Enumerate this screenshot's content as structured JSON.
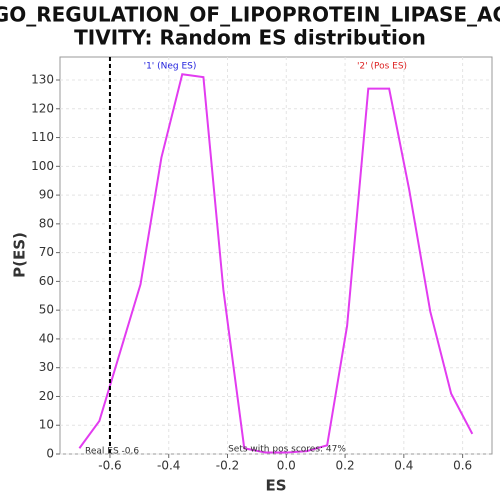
{
  "chart_data": {
    "type": "line",
    "title": [
      "GO_REGULATION_OF_LIPOPROTEIN_LIPASE_AC",
      "TIVITY: Random ES distribution"
    ],
    "x_label": "ES",
    "y_label": "P(ES)",
    "x": [
      -0.704,
      -0.636,
      -0.496,
      -0.425,
      -0.354,
      -0.282,
      -0.214,
      -0.143,
      -0.071,
      0.0,
      0.07,
      0.139,
      0.207,
      0.279,
      0.35,
      0.418,
      0.49,
      0.561,
      0.633
    ],
    "series": [
      {
        "name": "P(ES)",
        "color": "#e23cf0",
        "values": [
          2,
          11.5,
          59,
          103,
          132,
          131,
          57,
          2,
          0.5,
          0.5,
          1,
          3,
          44.6,
          127,
          127,
          92,
          49.5,
          21,
          7
        ]
      }
    ],
    "xlim": [
      -0.77,
      0.7
    ],
    "ylim": [
      0,
      138
    ],
    "xticks": [
      -0.6,
      -0.4,
      -0.2,
      {
        "value": 0,
        "label": "0.0"
      },
      0.2,
      0.4,
      0.6
    ],
    "yticks": [
      0,
      10,
      20,
      30,
      40,
      50,
      60,
      70,
      80,
      90,
      100,
      110,
      120,
      130
    ],
    "grid": true,
    "real_es": -0.6,
    "annotations": [
      {
        "text": "'1' (Neg ES)",
        "color": "#2222dd"
      },
      {
        "text": "'2' (Pos ES)",
        "color": "#dd2222"
      },
      {
        "text": "Real ES -0.6",
        "color": "#333333"
      },
      {
        "text": "Sets with pos scores: 47%",
        "color": "#333333"
      }
    ]
  }
}
